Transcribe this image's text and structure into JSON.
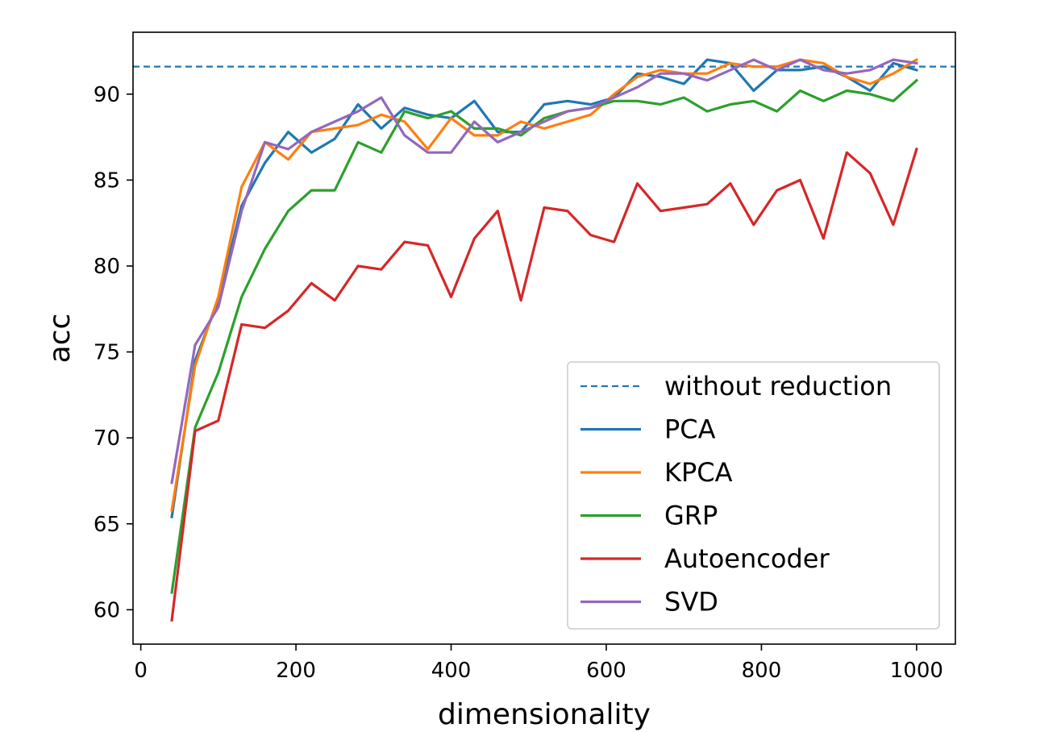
{
  "chart_data": {
    "type": "line",
    "title": "",
    "xlabel": "dimensionality",
    "ylabel": "acc",
    "xlim": [
      -10,
      1050
    ],
    "ylim": [
      58,
      93.6
    ],
    "xticks": [
      0,
      200,
      400,
      600,
      800,
      1000
    ],
    "yticks": [
      60,
      65,
      70,
      75,
      80,
      85,
      90
    ],
    "grid": false,
    "legend_position": "lower-right",
    "x": [
      40,
      70,
      100,
      130,
      160,
      190,
      220,
      250,
      280,
      310,
      340,
      370,
      400,
      430,
      460,
      490,
      520,
      550,
      580,
      610,
      640,
      670,
      700,
      730,
      760,
      790,
      820,
      850,
      880,
      910,
      940,
      970,
      1000
    ],
    "baseline": {
      "name": "without reduction",
      "value": 91.6,
      "color": "#1f77b4",
      "style": "dashed"
    },
    "series": [
      {
        "name": "PCA",
        "color": "#1f77b4",
        "values": [
          65.4,
          74.5,
          78.0,
          83.5,
          86.0,
          87.8,
          86.6,
          87.4,
          89.4,
          88.0,
          89.2,
          88.8,
          88.6,
          89.6,
          87.8,
          87.8,
          89.4,
          89.6,
          89.4,
          89.8,
          91.2,
          91.0,
          90.6,
          92.0,
          91.8,
          90.2,
          91.4,
          91.4,
          91.6,
          91.0,
          90.2,
          91.8,
          91.4
        ]
      },
      {
        "name": "KPCA",
        "color": "#ff7f0e",
        "values": [
          65.8,
          74.2,
          78.2,
          84.6,
          87.2,
          86.2,
          87.8,
          88.0,
          88.2,
          88.8,
          88.4,
          86.8,
          88.6,
          87.6,
          87.6,
          88.4,
          88.0,
          88.4,
          88.8,
          90.0,
          91.0,
          91.4,
          91.2,
          91.2,
          91.8,
          91.6,
          91.6,
          92.0,
          91.8,
          91.0,
          90.6,
          91.2,
          92.0
        ]
      },
      {
        "name": "GRP",
        "color": "#2ca02c",
        "values": [
          61.0,
          70.6,
          73.8,
          78.2,
          81.0,
          83.2,
          84.4,
          84.4,
          87.2,
          86.6,
          89.0,
          88.6,
          89.0,
          88.0,
          88.0,
          87.6,
          88.6,
          89.0,
          89.2,
          89.6,
          89.6,
          89.4,
          89.8,
          89.0,
          89.4,
          89.6,
          89.0,
          90.2,
          89.6,
          90.2,
          90.0,
          89.6,
          90.8
        ]
      },
      {
        "name": "Autoencoder",
        "color": "#d62728",
        "values": [
          59.4,
          70.4,
          71.0,
          76.6,
          76.4,
          77.4,
          79.0,
          78.0,
          80.0,
          79.8,
          81.4,
          81.2,
          78.2,
          81.6,
          83.2,
          78.0,
          83.4,
          83.2,
          81.8,
          81.4,
          84.8,
          83.2,
          83.4,
          83.6,
          84.8,
          82.4,
          84.4,
          85.0,
          81.6,
          86.6,
          85.4,
          82.4,
          86.8
        ]
      },
      {
        "name": "SVD",
        "color": "#9467bd",
        "values": [
          67.4,
          75.4,
          77.6,
          83.2,
          87.2,
          86.8,
          87.8,
          88.4,
          89.0,
          89.8,
          87.6,
          86.6,
          86.6,
          88.4,
          87.2,
          87.8,
          88.4,
          89.0,
          89.2,
          89.8,
          90.4,
          91.2,
          91.2,
          90.8,
          91.4,
          92.0,
          91.4,
          92.0,
          91.4,
          91.2,
          91.4,
          92.0,
          91.8
        ]
      }
    ]
  }
}
